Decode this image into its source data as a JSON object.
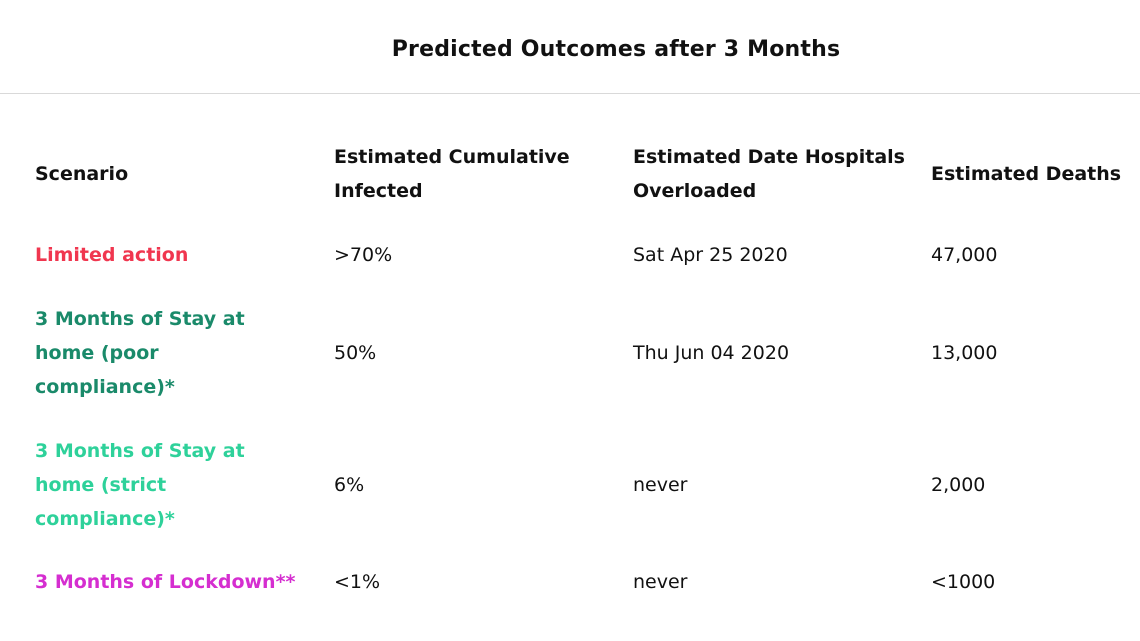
{
  "title": "Predicted Outcomes after 3 Months",
  "table": {
    "headers": [
      "Scenario",
      "Estimated Cumulative\nInfected",
      "Estimated Date Hospitals\nOverloaded",
      "Estimated Deaths"
    ],
    "rows": [
      {
        "scenario": "Limited action",
        "color": "#f0364f",
        "infected": ">70%",
        "date": "Sat Apr 25 2020",
        "deaths": "47,000"
      },
      {
        "scenario": "3 Months of Stay at\nhome (poor\ncompliance)*",
        "color": "#1a8a6a",
        "infected": "50%",
        "date": "Thu Jun 04 2020",
        "deaths": "13,000"
      },
      {
        "scenario": "3 Months of Stay at\nhome (strict\ncompliance)*",
        "color": "#2ed19a",
        "infected": "6%",
        "date": "never",
        "deaths": "2,000"
      },
      {
        "scenario": "3 Months of Lockdown**",
        "color": "#d52ed0",
        "infected": "<1%",
        "date": "never",
        "deaths": "<1000"
      }
    ]
  }
}
